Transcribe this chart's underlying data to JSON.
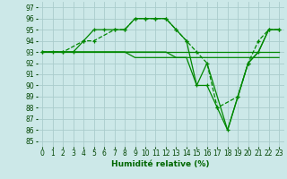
{
  "xlabel": "Humidité relative (%)",
  "background_color": "#cce8e8",
  "grid_color": "#aacccc",
  "line_color": "#008800",
  "xlim": [
    -0.5,
    23.5
  ],
  "ylim": [
    84.5,
    97.5
  ],
  "yticks": [
    85,
    86,
    87,
    88,
    89,
    90,
    91,
    92,
    93,
    94,
    95,
    96,
    97
  ],
  "xticks": [
    0,
    1,
    2,
    3,
    4,
    5,
    6,
    7,
    8,
    9,
    10,
    11,
    12,
    13,
    14,
    15,
    16,
    17,
    18,
    19,
    20,
    21,
    22,
    23
  ],
  "lines": [
    {
      "x": [
        0,
        1,
        2,
        3,
        4,
        5,
        6,
        7,
        8,
        9,
        10,
        11,
        12,
        13,
        14,
        15,
        16,
        17,
        18,
        19,
        20,
        21,
        22,
        23
      ],
      "y": [
        93,
        93,
        93,
        93,
        94,
        95,
        95,
        95,
        95,
        96,
        96,
        96,
        96,
        95,
        94,
        90,
        90,
        88,
        86,
        89,
        92,
        93,
        95,
        95
      ],
      "marker": "+",
      "ls": "-",
      "lw": 0.9
    },
    {
      "x": [
        0,
        1,
        2,
        3,
        4,
        5,
        6,
        7,
        8,
        9,
        10,
        11,
        12,
        13,
        14,
        15,
        16,
        17,
        18,
        19,
        20,
        21,
        22,
        23
      ],
      "y": [
        93,
        93,
        93,
        93,
        93,
        93,
        93,
        93,
        93,
        93,
        93,
        93,
        93,
        93,
        93,
        93,
        93,
        93,
        93,
        93,
        93,
        93,
        93,
        93
      ],
      "marker": null,
      "ls": "-",
      "lw": 0.9
    },
    {
      "x": [
        0,
        1,
        2,
        3,
        4,
        5,
        6,
        7,
        8,
        9,
        10,
        11,
        12,
        13,
        14,
        15,
        16,
        17,
        18,
        19,
        20,
        21,
        22,
        23
      ],
      "y": [
        93,
        93,
        93,
        93,
        93,
        93,
        93,
        93,
        93,
        92.5,
        92.5,
        92.5,
        92.5,
        92.5,
        92.5,
        92.5,
        92.5,
        92.5,
        92.5,
        92.5,
        92.5,
        92.5,
        92.5,
        92.5
      ],
      "marker": null,
      "ls": "-",
      "lw": 0.9
    },
    {
      "x": [
        0,
        2,
        4,
        5,
        7,
        8,
        9,
        10,
        11,
        12,
        13,
        14,
        15,
        16,
        17,
        19,
        20,
        21,
        22,
        23
      ],
      "y": [
        93,
        93,
        94,
        94,
        95,
        95,
        96,
        96,
        96,
        96,
        95,
        94,
        93,
        92,
        88,
        89,
        92,
        94,
        95,
        95
      ],
      "marker": "+",
      "ls": "--",
      "lw": 0.9
    },
    {
      "x": [
        0,
        1,
        2,
        3,
        4,
        5,
        6,
        7,
        8,
        9,
        10,
        11,
        12,
        13,
        14,
        15,
        16,
        17,
        18,
        19,
        20,
        21,
        22,
        23
      ],
      "y": [
        93,
        93,
        93,
        93,
        93,
        93,
        93,
        93,
        93,
        93,
        93,
        93,
        93,
        92.5,
        92.5,
        90,
        92,
        89,
        86,
        89,
        92,
        93,
        95,
        95
      ],
      "marker": null,
      "ls": "-",
      "lw": 0.9
    }
  ],
  "xlabel_color": "#006600",
  "xlabel_fontsize": 6.5,
  "tick_labelsize": 5.5,
  "tick_color": "#004400"
}
